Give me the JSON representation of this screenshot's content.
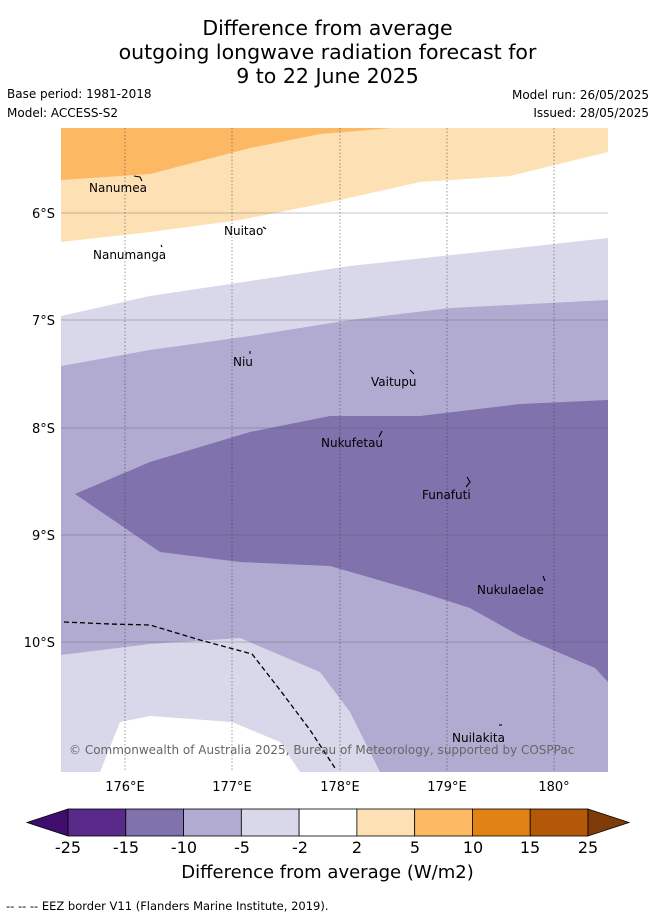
{
  "title": {
    "line1": "Difference from average",
    "line2": "outgoing longwave radiation forecast for",
    "line3": "9 to 22 June 2025"
  },
  "meta": {
    "base_period": "Base period: 1981-2018",
    "model": "Model: ACCESS-S2",
    "model_run": "Model run: 26/05/2025",
    "issued": "Issued: 28/05/2025"
  },
  "map": {
    "lat_labels": [
      "6°S",
      "7°S",
      "8°S",
      "9°S",
      "10°S"
    ],
    "lon_labels": [
      "176°E",
      "177°E",
      "178°E",
      "179°E",
      "180°"
    ],
    "places": [
      "Nanumea",
      "Nuitao",
      "Nanumanga",
      "Niu",
      "Vaitupu",
      "Nukufetau",
      "Funafuti",
      "Nukulaelae",
      "Nuilakita"
    ],
    "copyright": "© Commonwealth of Australia 2025, Bureau of Meteorology, supported by COSPPac",
    "eez_line_style": "dashed"
  },
  "colorbar": {
    "ticks": [
      "-25",
      "-15",
      "-10",
      "-5",
      "-2",
      "2",
      "5",
      "10",
      "15",
      "25"
    ],
    "colors": [
      "#3f0d6e",
      "#5a2a8a",
      "#7f72ad",
      "#b1abd1",
      "#d8d8ea",
      "#ffffff",
      "#fde0b3",
      "#fdb863",
      "#e08214",
      "#b35806",
      "#7f3b08"
    ],
    "title": "Difference from average (W/m2)"
  },
  "footer": "-- -- -- EEZ border V11 (Flanders Marine Institute, 2019)."
}
